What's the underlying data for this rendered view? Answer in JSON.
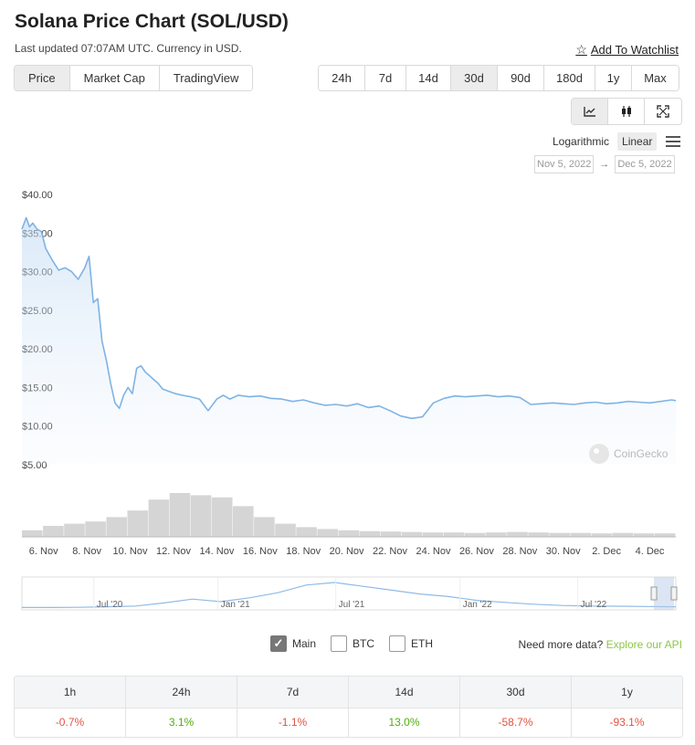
{
  "header": {
    "title": "Solana Price Chart (SOL/USD)",
    "updated": "Last updated 07:07AM UTC. Currency in USD.",
    "watchlist": "Add To Watchlist"
  },
  "view_tabs": [
    "Price",
    "Market Cap",
    "TradingView"
  ],
  "active_view": "Price",
  "ranges": [
    "24h",
    "7d",
    "14d",
    "30d",
    "90d",
    "180d",
    "1y",
    "Max"
  ],
  "active_range": "30d",
  "chart_buttons": [
    "line-chart-icon",
    "candlestick-icon",
    "fullscreen-icon"
  ],
  "scale": {
    "log_label": "Logarithmic",
    "linear_label": "Linear",
    "active": "Linear"
  },
  "date_range": {
    "from": "Nov 5, 2022",
    "arrow": "→",
    "to": "Dec 5, 2022"
  },
  "watermark": "CoinGecko",
  "chart_data": {
    "type": "area",
    "title": "",
    "ylabel": "",
    "ylim": [
      5,
      40
    ],
    "yticks": [
      40,
      35,
      30,
      25,
      20,
      15,
      10,
      5
    ],
    "ytick_labels": [
      "$40.00",
      "$35.00",
      "$30.00",
      "$25.00",
      "$20.00",
      "$15.00",
      "$10.00",
      "$5.00"
    ],
    "x_tick_labels": [
      "6. Nov",
      "8. Nov",
      "10. Nov",
      "12. Nov",
      "14. Nov",
      "16. Nov",
      "18. Nov",
      "20. Nov",
      "22. Nov",
      "24. Nov",
      "26. Nov",
      "28. Nov",
      "30. Nov",
      "2. Dec",
      "4. Dec"
    ],
    "x_tick_days": [
      6,
      8,
      10,
      12,
      14,
      16,
      18,
      20,
      22,
      24,
      26,
      28,
      30,
      32,
      34
    ],
    "x_start": "2022-11-05",
    "series": [
      {
        "name": "",
        "x_days": [
          5.0,
          5.2,
          5.35,
          5.5,
          5.7,
          5.9,
          6.1,
          6.4,
          6.7,
          7.0,
          7.3,
          7.6,
          7.9,
          8.1,
          8.3,
          8.5,
          8.7,
          8.9,
          9.1,
          9.3,
          9.5,
          9.7,
          9.9,
          10.1,
          10.3,
          10.5,
          10.7,
          10.9,
          11.1,
          11.3,
          11.5,
          11.8,
          12.1,
          12.4,
          12.8,
          13.2,
          13.6,
          14.0,
          14.3,
          14.6,
          15.0,
          15.5,
          16.0,
          16.5,
          17.0,
          17.5,
          18.0,
          18.5,
          19.0,
          19.5,
          20.0,
          20.5,
          21.0,
          21.5,
          22.0,
          22.5,
          23.0,
          23.5,
          24.0,
          24.5,
          25.0,
          25.5,
          26.0,
          26.5,
          27.0,
          27.5,
          28.0,
          28.5,
          29.0,
          29.5,
          30.0,
          30.5,
          31.0,
          31.5,
          32.0,
          32.5,
          33.0,
          33.5,
          34.0,
          34.5,
          35.0,
          35.2
        ],
        "values": [
          35.5,
          37.0,
          35.8,
          36.3,
          35.5,
          35.2,
          33.0,
          31.5,
          30.2,
          30.5,
          30.0,
          29.0,
          30.5,
          32.0,
          26.0,
          26.5,
          21.0,
          18.5,
          15.5,
          13.0,
          12.3,
          14.0,
          15.0,
          14.2,
          17.5,
          17.8,
          17.0,
          16.5,
          16.0,
          15.5,
          14.8,
          14.5,
          14.2,
          14.0,
          13.8,
          13.5,
          12.0,
          13.5,
          14.0,
          13.5,
          14.0,
          13.8,
          13.9,
          13.6,
          13.5,
          13.2,
          13.4,
          13.0,
          12.7,
          12.8,
          12.6,
          12.9,
          12.4,
          12.6,
          12.0,
          11.3,
          11.0,
          11.2,
          13.0,
          13.6,
          13.9,
          13.8,
          13.9,
          14.0,
          13.8,
          13.9,
          13.7,
          12.8,
          12.9,
          13.0,
          12.9,
          12.8,
          13.0,
          13.1,
          12.9,
          13.0,
          13.2,
          13.1,
          13.0,
          13.2,
          13.4,
          13.3
        ]
      }
    ],
    "volume_profile": [
      0.15,
      0.25,
      0.3,
      0.35,
      0.45,
      0.6,
      0.85,
      1.0,
      0.95,
      0.9,
      0.7,
      0.45,
      0.3,
      0.22,
      0.18,
      0.15,
      0.13,
      0.12,
      0.11,
      0.1,
      0.1,
      0.09,
      0.1,
      0.11,
      0.1,
      0.09,
      0.09,
      0.08,
      0.09,
      0.08,
      0.08
    ],
    "navigator": {
      "labels": [
        "Jul '20",
        "Jan '21",
        "Jul '21",
        "Jan '22",
        "Jul '22"
      ],
      "values": [
        0.02,
        0.02,
        0.03,
        0.05,
        0.08,
        0.2,
        0.35,
        0.25,
        0.4,
        0.6,
        0.9,
        1.0,
        0.85,
        0.7,
        0.55,
        0.45,
        0.3,
        0.22,
        0.15,
        0.1,
        0.08,
        0.07,
        0.06,
        0.05
      ]
    }
  },
  "compare": {
    "items": [
      {
        "label": "Main",
        "checked": true
      },
      {
        "label": "BTC",
        "checked": false
      },
      {
        "label": "ETH",
        "checked": false
      }
    ],
    "more_text": "Need more data?",
    "more_link": "Explore our API"
  },
  "performance": {
    "headers": [
      "1h",
      "24h",
      "7d",
      "14d",
      "30d",
      "1y"
    ],
    "values": [
      "-0.7%",
      "3.1%",
      "-1.1%",
      "13.0%",
      "-58.7%",
      "-93.1%"
    ]
  }
}
